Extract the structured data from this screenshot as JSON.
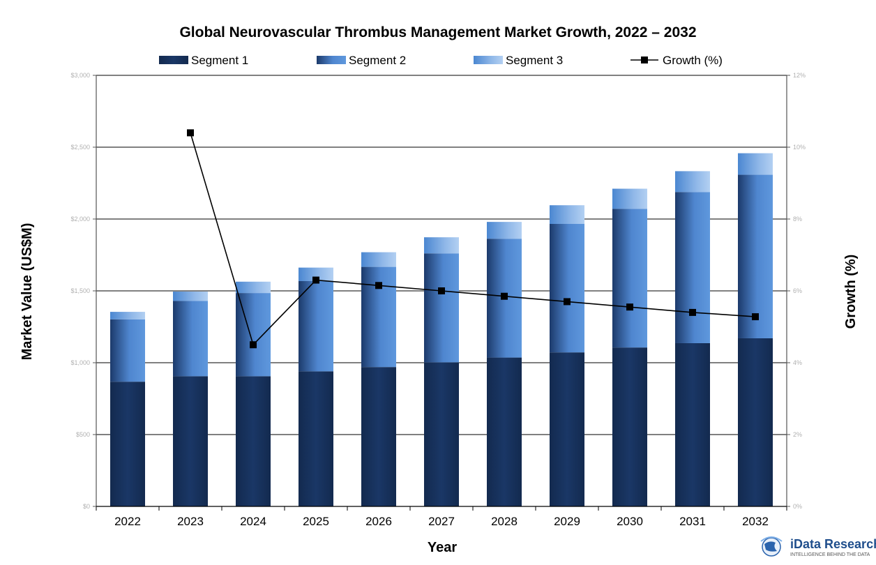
{
  "chart_data": {
    "type": "bar",
    "stacked": true,
    "title": "Global Neurovascular Thrombus Management Market Growth, 2022 – 2032",
    "xlabel": "Year",
    "ylabel": "Market Value (US$M)",
    "y2label": "Growth (%)",
    "categories": [
      "2022",
      "2023",
      "2024",
      "2025",
      "2026",
      "2027",
      "2028",
      "2029",
      "2030",
      "2031",
      "2032"
    ],
    "ylim": [
      0,
      3000
    ],
    "y2lim": [
      0,
      12
    ],
    "yticks": [
      "$0",
      "$500",
      "$1,000",
      "$1,500",
      "$2,000",
      "$2,500",
      "$3,000"
    ],
    "y2ticks": [
      "0%",
      "2%",
      "4%",
      "6%",
      "8%",
      "10%",
      "12%"
    ],
    "series": [
      {
        "name": "Segment 1",
        "type": "bar",
        "values": [
          868,
          906,
          906,
          940,
          970,
          1003,
          1036,
          1072,
          1106,
          1136,
          1170
        ]
      },
      {
        "name": "Segment 2",
        "type": "bar",
        "values": [
          434,
          524,
          579,
          628,
          697,
          758,
          827,
          894,
          965,
          1052,
          1138
        ]
      },
      {
        "name": "Segment 3",
        "type": "bar",
        "values": [
          52,
          65,
          79,
          94,
          102,
          112,
          117,
          130,
          140,
          145,
          150
        ]
      },
      {
        "name": "Growth (%)",
        "type": "line",
        "axis": "right",
        "values": [
          null,
          10.4,
          4.5,
          6.3,
          6.15,
          6.0,
          5.85,
          5.7,
          5.55,
          5.4,
          5.28
        ]
      }
    ],
    "legend_position": "top",
    "grid": true,
    "colors": {
      "segment1": "#15305a",
      "segment2_dark": "#1d3c6e",
      "segment2_light": "#5a93d9",
      "segment3_dark": "#4a86d0",
      "segment3_light": "#a9c8ee",
      "growth_line": "#000000"
    }
  },
  "logo": {
    "name": "iData Research",
    "tagline": "INTELLIGENCE BEHIND THE DATA"
  }
}
